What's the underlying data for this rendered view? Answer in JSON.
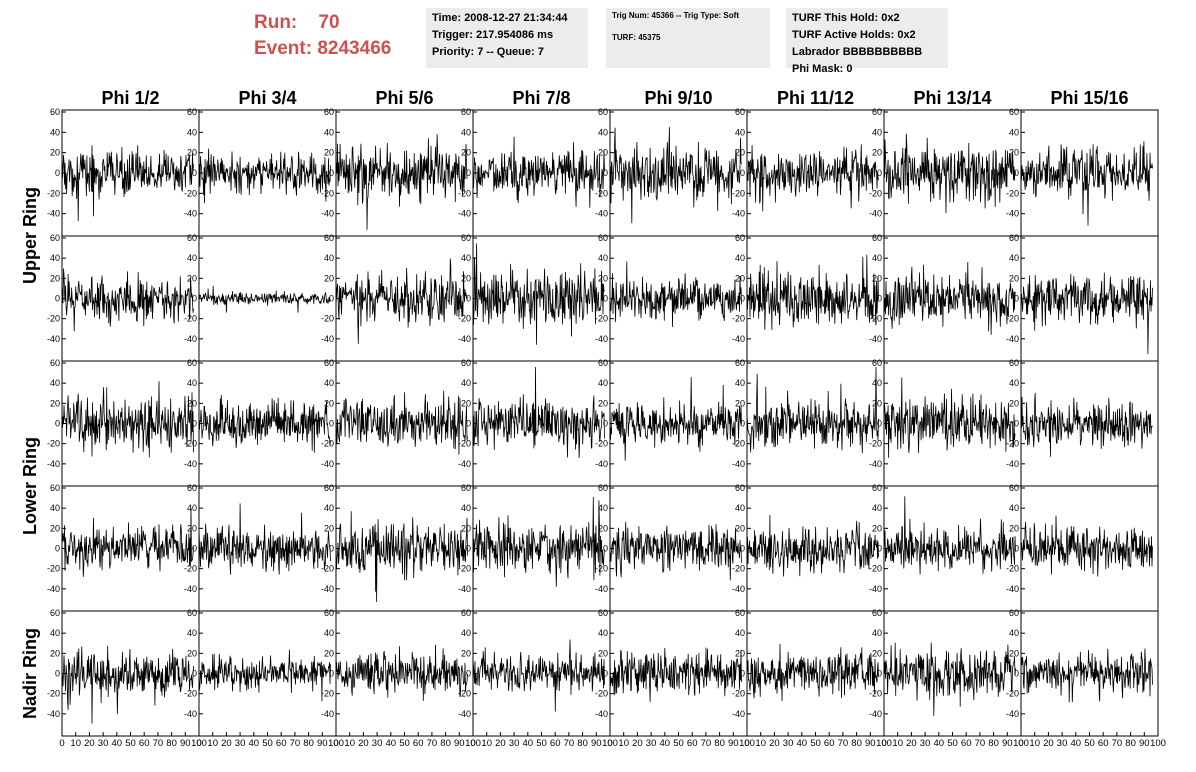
{
  "header": {
    "run_label": "Run:",
    "run_value": "70",
    "event_label": "Event:",
    "event_value": "8243466",
    "time_line": "Time: 2008-12-27 21:34:44",
    "trigger_line": "Trigger: 217.954086 ms",
    "priority_line": "Priority: 7 -- Queue: 7",
    "trig_line": "Trig Num: 45366 -- Trig Type: Soft",
    "turf_line": "TURF: 45375",
    "turf_hold_line": "TURF This Hold: 0x2",
    "turf_active_line": "TURF Active Holds: 0x2",
    "labrador_line": "Labrador BBBBBBBBBB",
    "phi_mask_line": "Phi Mask: 0"
  },
  "chart_data": {
    "type": "line",
    "columns": [
      "Phi 1/2",
      "Phi 3/4",
      "Phi 5/6",
      "Phi 7/8",
      "Phi 9/10",
      "Phi 11/12",
      "Phi 13/14",
      "Phi 15/16"
    ],
    "row_labels": [
      "Upper Ring",
      "Lower Ring",
      "Nadir Ring"
    ],
    "rows": 5,
    "xlim": [
      0,
      100
    ],
    "ylim": [
      -60,
      60
    ],
    "x_ticks": [
      0,
      10,
      20,
      30,
      40,
      50,
      60,
      70,
      80,
      90,
      100
    ],
    "y_ticks": [
      -40,
      -20,
      0,
      20,
      40,
      60
    ],
    "samples_per_trace": 260,
    "trace_x_range": [
      0,
      96
    ],
    "amplitudes": [
      [
        11,
        9,
        14,
        12,
        14,
        12,
        13,
        12
      ],
      [
        12,
        3,
        12,
        13,
        10,
        13,
        12,
        12
      ],
      [
        14,
        11,
        12,
        12,
        12,
        12,
        13,
        11
      ],
      [
        11,
        12,
        13,
        13,
        11,
        11,
        10,
        11
      ],
      [
        11,
        8,
        11,
        9,
        11,
        11,
        12,
        11
      ]
    ],
    "colors": {
      "trace": "#000000",
      "frame": "#000000",
      "tick_text": "#000000"
    }
  }
}
